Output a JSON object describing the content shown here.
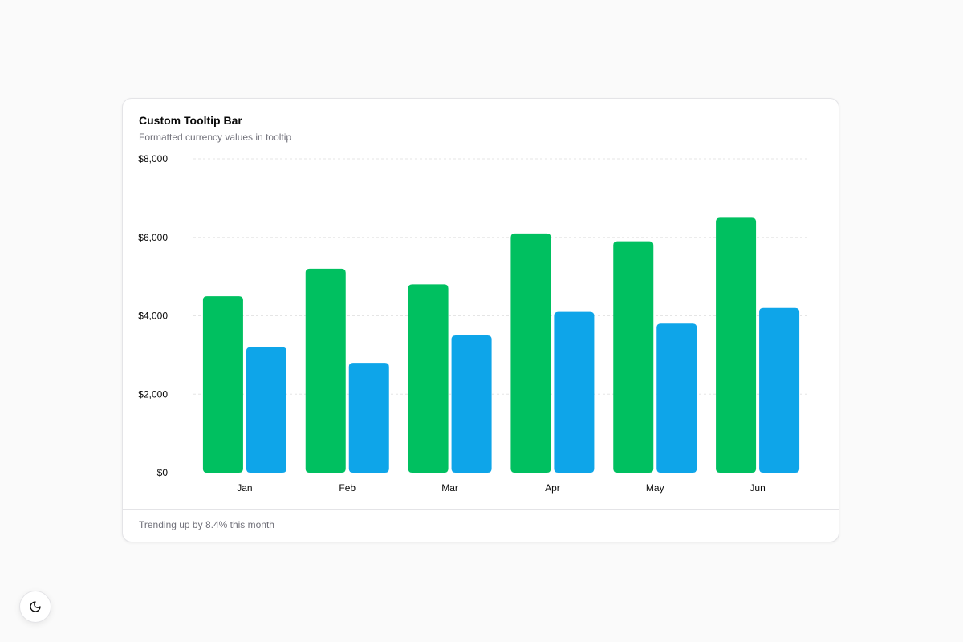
{
  "card": {
    "title": "Custom Tooltip Bar",
    "subtitle": "Formatted currency values in tooltip",
    "footer": "Trending up by 8.4% this month"
  },
  "theme_toggle": {
    "icon": "moon-icon"
  },
  "colors": {
    "series1": "#00c060",
    "series2": "#0ea5e9",
    "grid": "#e5e5e5"
  },
  "chart_data": {
    "type": "bar",
    "categories": [
      "Jan",
      "Feb",
      "Mar",
      "Apr",
      "May",
      "Jun"
    ],
    "series": [
      {
        "values": [
          4500,
          5200,
          4800,
          6100,
          5900,
          6500
        ]
      },
      {
        "values": [
          3200,
          2800,
          3500,
          4100,
          3800,
          4200
        ]
      }
    ],
    "y_ticks": [
      "$0",
      "$2,000",
      "$4,000",
      "$6,000",
      "$8,000"
    ],
    "ylim": [
      0,
      8000
    ],
    "grid": true
  }
}
